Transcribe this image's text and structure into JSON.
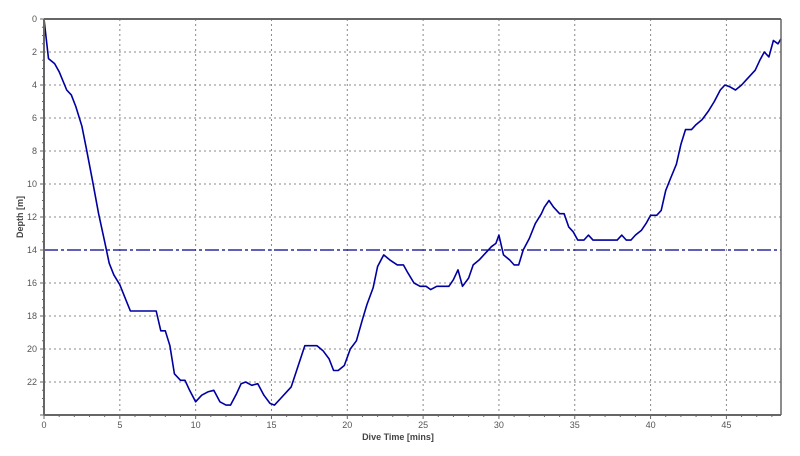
{
  "chart_data": {
    "type": "line",
    "title": "",
    "xlabel": "Dive Time [mins]",
    "ylabel": "Depth [m]",
    "xlim": [
      0,
      48.6
    ],
    "ylim": [
      24,
      0
    ],
    "y_inverted": true,
    "grid": true,
    "x_ticks": [
      0,
      5,
      10,
      15,
      20,
      25,
      30,
      35,
      40,
      45
    ],
    "y_ticks": [
      0,
      2,
      4,
      6,
      8,
      10,
      12,
      14,
      16,
      18,
      20,
      22
    ],
    "reference_line": {
      "depth": 14,
      "style": "dash-dot",
      "color": "#00008B"
    },
    "line_color": "#0000A0",
    "series": [
      {
        "name": "Depth",
        "x": [
          0,
          0.3,
          0.7,
          1.0,
          1.5,
          1.8,
          2.1,
          2.5,
          2.8,
          3.2,
          3.6,
          4.0,
          4.3,
          4.6,
          5.0,
          5.3,
          5.7,
          6.1,
          6.6,
          7.0,
          7.4,
          7.7,
          8.0,
          8.3,
          8.6,
          9.0,
          9.3,
          9.6,
          10.0,
          10.4,
          10.8,
          11.2,
          11.6,
          12.0,
          12.3,
          12.7,
          13.0,
          13.3,
          13.7,
          14.1,
          14.5,
          14.9,
          15.2,
          15.6,
          16.0,
          16.3,
          16.7,
          17.2,
          17.6,
          18.0,
          18.4,
          18.8,
          19.1,
          19.4,
          19.8,
          20.2,
          20.6,
          21.0,
          21.3,
          21.7,
          22.0,
          22.4,
          22.8,
          23.3,
          23.7,
          24.0,
          24.4,
          24.8,
          25.2,
          25.5,
          25.9,
          26.3,
          26.7,
          27.0,
          27.3,
          27.6,
          28.0,
          28.3,
          28.7,
          29.1,
          29.5,
          29.8,
          30.0,
          30.3,
          30.7,
          31.0,
          31.3,
          31.6,
          32.0,
          32.4,
          32.8,
          33.0,
          33.3,
          33.6,
          34.0,
          34.3,
          34.6,
          34.9,
          35.2,
          35.6,
          35.9,
          36.2,
          36.6,
          37.0,
          37.4,
          37.8,
          38.1,
          38.4,
          38.7,
          39.0,
          39.4,
          39.7,
          40.0,
          40.4,
          40.7,
          41.0,
          41.3,
          41.7,
          42.0,
          42.3,
          42.7,
          43.0,
          43.4,
          43.8,
          44.2,
          44.6,
          44.9,
          45.2,
          45.6,
          46.0,
          46.3,
          46.6,
          46.9,
          47.2,
          47.5,
          47.8,
          48.1,
          48.4,
          48.6
        ],
        "y": [
          0,
          2.4,
          2.7,
          3.2,
          4.3,
          4.6,
          5.3,
          6.5,
          7.9,
          9.8,
          11.8,
          13.5,
          14.8,
          15.5,
          16.1,
          16.8,
          17.7,
          17.7,
          17.7,
          17.7,
          17.7,
          18.9,
          18.9,
          19.8,
          21.5,
          21.9,
          21.9,
          22.5,
          23.2,
          22.8,
          22.6,
          22.5,
          23.2,
          23.4,
          23.4,
          22.7,
          22.1,
          22.0,
          22.2,
          22.1,
          22.8,
          23.3,
          23.4,
          23.0,
          22.6,
          22.3,
          21.2,
          19.8,
          19.8,
          19.8,
          20.1,
          20.6,
          21.3,
          21.3,
          21.0,
          20.0,
          19.5,
          18.2,
          17.3,
          16.3,
          15.0,
          14.3,
          14.6,
          14.9,
          14.9,
          15.4,
          16.0,
          16.2,
          16.2,
          16.4,
          16.2,
          16.2,
          16.2,
          15.8,
          15.2,
          16.2,
          15.7,
          14.9,
          14.6,
          14.2,
          13.8,
          13.6,
          13.1,
          14.3,
          14.6,
          14.9,
          14.9,
          14.0,
          13.3,
          12.4,
          11.8,
          11.4,
          11.0,
          11.4,
          11.8,
          11.8,
          12.6,
          12.9,
          13.4,
          13.4,
          13.1,
          13.4,
          13.4,
          13.4,
          13.4,
          13.4,
          13.1,
          13.4,
          13.4,
          13.1,
          12.8,
          12.4,
          11.9,
          11.9,
          11.6,
          10.4,
          9.7,
          8.8,
          7.6,
          6.7,
          6.7,
          6.4,
          6.1,
          5.6,
          5.0,
          4.3,
          4.0,
          4.1,
          4.3,
          4.0,
          3.7,
          3.4,
          3.1,
          2.5,
          2.0,
          2.3,
          1.3,
          1.5,
          1.2
        ]
      }
    ]
  }
}
